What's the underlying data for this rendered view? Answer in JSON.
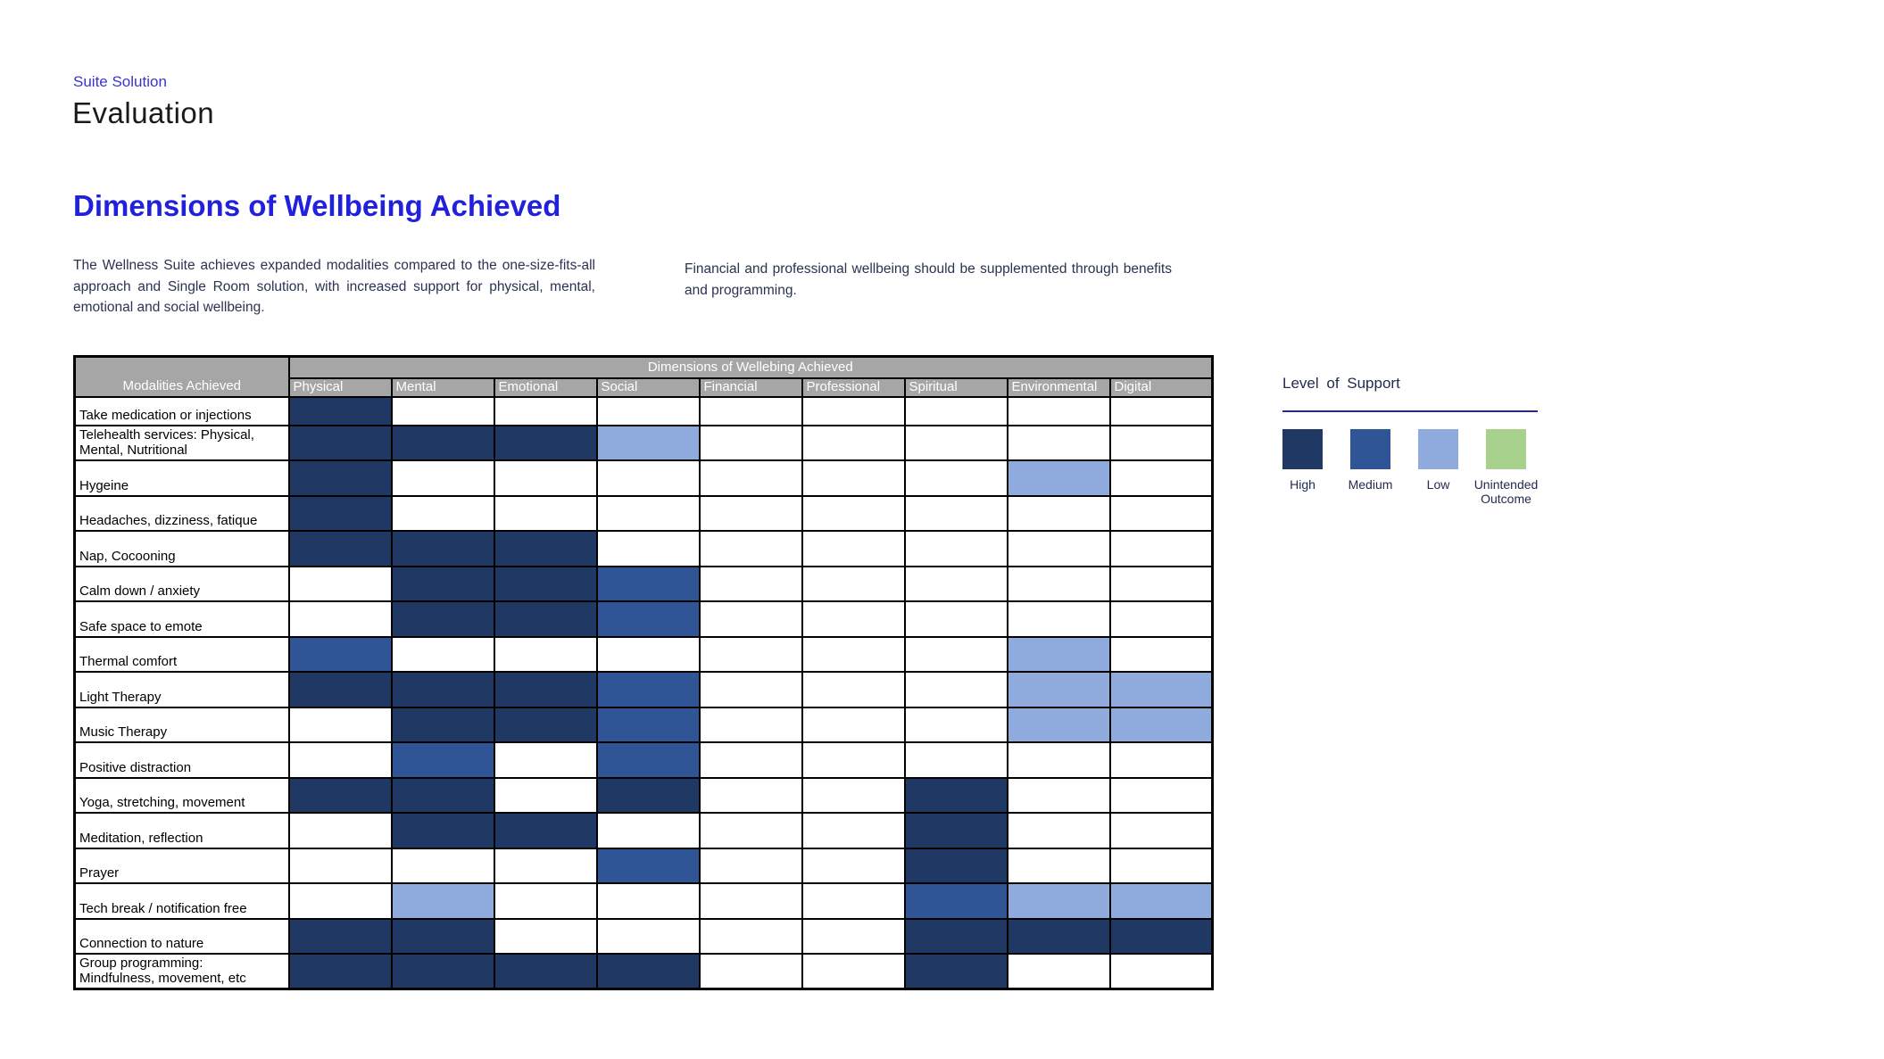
{
  "page": {
    "eyebrow": "Suite Solution",
    "title": "Evaluation",
    "heading": "Dimensions of Wellbeing Achieved",
    "paragraph_left": "The Wellness Suite achieves expanded modalities compared to the one-size-fits-all approach and Single Room solution, with increased support for physical, mental, emotional and social wellbeing.",
    "paragraph_right": "Financial and professional wellbeing should be supplemented through benefits and programming."
  },
  "colors": {
    "high": "#1F3864",
    "medium": "#2F5597",
    "low": "#8FAADC",
    "unintended": "#A9D18E",
    "header_gray": "#A6A6A6",
    "heading_blue": "#2121DC",
    "eyebrow_blue": "#3A34CB",
    "body_navy": "#2A3350"
  },
  "table": {
    "group_header": "Dimensions of Wellebing Achieved",
    "row_header": "Modalities Achieved",
    "columns": [
      "Physical",
      "Mental",
      "Emotional",
      "Social",
      "Financial",
      "Professional",
      "Spiritual",
      "Environmental",
      "Digital"
    ],
    "rows": [
      {
        "label": "Take medication or injections",
        "cells": [
          "high",
          "",
          "",
          "",
          "",
          "",
          "",
          "",
          ""
        ]
      },
      {
        "label": "Telehealth services: Physical,\nMental, Nutritional",
        "cells": [
          "high",
          "high",
          "high",
          "low",
          "",
          "",
          "",
          "",
          ""
        ]
      },
      {
        "label": "Hygeine",
        "cells": [
          "high",
          "",
          "",
          "",
          "",
          "",
          "",
          "low",
          ""
        ]
      },
      {
        "label": "Headaches, dizziness, fatique",
        "cells": [
          "high",
          "",
          "",
          "",
          "",
          "",
          "",
          "",
          ""
        ]
      },
      {
        "label": "Nap, Cocooning",
        "cells": [
          "high",
          "high",
          "high",
          "",
          "",
          "",
          "",
          "",
          ""
        ]
      },
      {
        "label": "Calm down / anxiety",
        "cells": [
          "",
          "high",
          "high",
          "medium",
          "",
          "",
          "",
          "",
          ""
        ]
      },
      {
        "label": "Safe space to emote",
        "cells": [
          "",
          "high",
          "high",
          "medium",
          "",
          "",
          "",
          "",
          ""
        ]
      },
      {
        "label": "Thermal comfort",
        "cells": [
          "medium",
          "",
          "",
          "",
          "",
          "",
          "",
          "low",
          ""
        ]
      },
      {
        "label": "Light Therapy",
        "cells": [
          "high",
          "high",
          "high",
          "medium",
          "",
          "",
          "",
          "low",
          "low"
        ]
      },
      {
        "label": "Music Therapy",
        "cells": [
          "",
          "high",
          "high",
          "medium",
          "",
          "",
          "",
          "low",
          "low"
        ]
      },
      {
        "label": "Positive distraction",
        "cells": [
          "",
          "medium",
          "",
          "medium",
          "",
          "",
          "",
          "",
          ""
        ]
      },
      {
        "label": "Yoga, stretching, movement",
        "cells": [
          "high",
          "high",
          "",
          "high",
          "",
          "",
          "high",
          "",
          ""
        ]
      },
      {
        "label": "Meditation, reflection",
        "cells": [
          "",
          "high",
          "high",
          "",
          "",
          "",
          "high",
          "",
          ""
        ]
      },
      {
        "label": "Prayer",
        "cells": [
          "",
          "",
          "",
          "medium",
          "",
          "",
          "high",
          "",
          ""
        ]
      },
      {
        "label": "Tech break / notification free",
        "cells": [
          "",
          "low",
          "",
          "",
          "",
          "",
          "medium",
          "low",
          "low"
        ]
      },
      {
        "label": "Connection to nature",
        "cells": [
          "high",
          "high",
          "",
          "",
          "",
          "",
          "high",
          "high",
          "high"
        ]
      },
      {
        "label": "Group programming:\nMindfulness, movement, etc",
        "cells": [
          "high",
          "high",
          "high",
          "high",
          "",
          "",
          "high",
          "",
          ""
        ]
      }
    ]
  },
  "legend": {
    "title": "Level  of Support",
    "items": [
      {
        "label": "High",
        "color_key": "high"
      },
      {
        "label": "Medium",
        "color_key": "medium"
      },
      {
        "label": "Low",
        "color_key": "low"
      },
      {
        "label": "Unintended Outcome",
        "color_key": "unintended"
      }
    ]
  }
}
